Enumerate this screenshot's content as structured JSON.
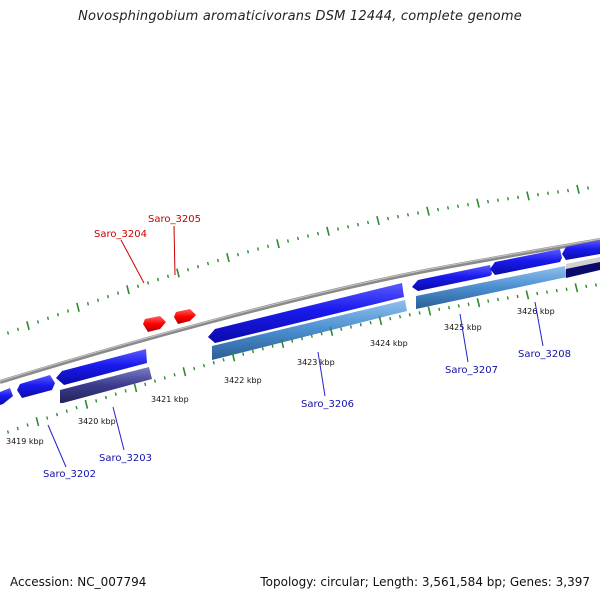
{
  "title": "Novosphingobium aromaticivorans DSM 12444, complete genome",
  "footer": {
    "accession": "Accession: NC_007794",
    "stats": "Topology: circular; Length: 3,561,584 bp; Genes: 3,397"
  },
  "colors": {
    "forward_gene": "#1414e6",
    "reverse_gene": "#4a8ed0",
    "reverse_gene_alt": "#3a3a8c",
    "rna_gene": "#ff0000",
    "backbone": "#888888",
    "ticks": "#2e8b2e",
    "forward_label": "#1111aa",
    "rna_label": "#cc0000"
  },
  "scale": {
    "unit": "kbp",
    "ticks": [
      {
        "label": "3419 kbp"
      },
      {
        "label": "3420 kbp"
      },
      {
        "label": "3421 kbp"
      },
      {
        "label": "3422 kbp"
      },
      {
        "label": "3423 kbp"
      },
      {
        "label": "3424 kbp"
      },
      {
        "label": "3425 kbp"
      },
      {
        "label": "3426 kbp"
      }
    ]
  },
  "genes": [
    {
      "name": "Saro_3202",
      "strand": "forward",
      "kind": "cds"
    },
    {
      "name": "Saro_3203",
      "strand": "reverse",
      "kind": "cds"
    },
    {
      "name": "Saro_3204",
      "strand": "forward",
      "kind": "rna"
    },
    {
      "name": "Saro_3205",
      "strand": "forward",
      "kind": "rna"
    },
    {
      "name": "Saro_3206",
      "strand": "reverse",
      "kind": "cds"
    },
    {
      "name": "Saro_3207",
      "strand": "reverse",
      "kind": "cds"
    },
    {
      "name": "Saro_3208",
      "strand": "reverse",
      "kind": "cds"
    }
  ]
}
